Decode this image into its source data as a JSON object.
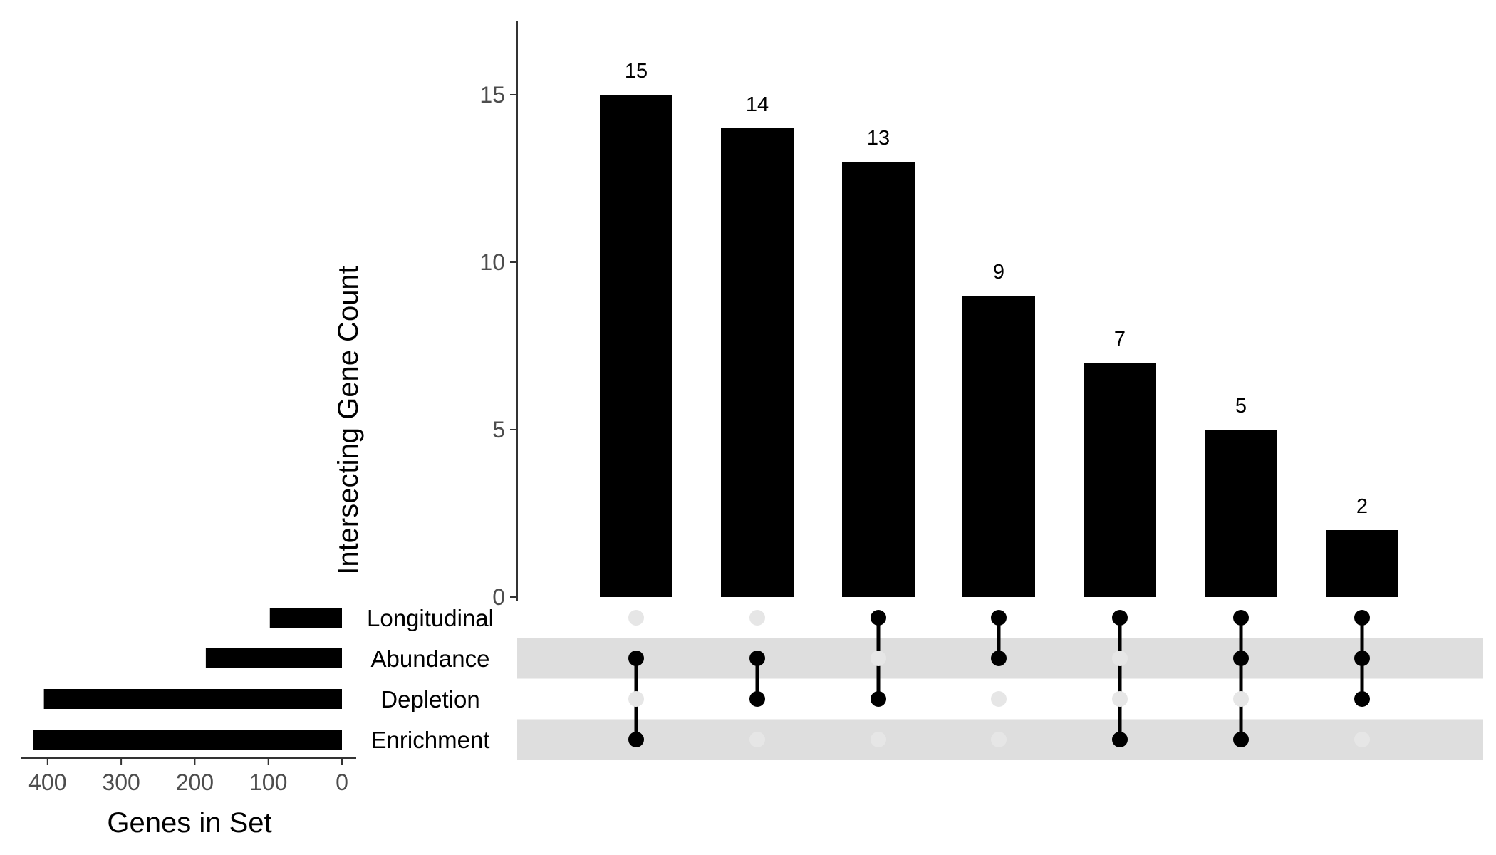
{
  "chart_data": [
    {
      "type": "bar",
      "name": "intersection-size",
      "ylabel": "Intersecting Gene Count",
      "ylim": [
        0,
        17.2
      ],
      "yticks": [
        0,
        5,
        10,
        15
      ],
      "values": [
        15,
        14,
        13,
        9,
        7,
        5,
        2
      ],
      "value_labels": [
        "15",
        "14",
        "13",
        "9",
        "7",
        "5",
        "2"
      ]
    },
    {
      "type": "bar",
      "name": "set-size",
      "orientation": "horizontal-reversed",
      "xlabel": "Genes in Set",
      "xlim": [
        430,
        0
      ],
      "xticks": [
        400,
        300,
        200,
        100,
        0
      ],
      "sets": [
        "Longitudinal",
        "Abundance",
        "Depletion",
        "Enrichment"
      ],
      "values": [
        98,
        185,
        405,
        420
      ]
    },
    {
      "type": "matrix",
      "name": "intersection-matrix",
      "sets": [
        "Longitudinal",
        "Abundance",
        "Depletion",
        "Enrichment"
      ],
      "membership": [
        [
          "Abundance",
          "Enrichment"
        ],
        [
          "Abundance",
          "Depletion"
        ],
        [
          "Longitudinal",
          "Depletion"
        ],
        [
          "Longitudinal",
          "Abundance"
        ],
        [
          "Longitudinal",
          "Enrichment"
        ],
        [
          "Longitudinal",
          "Abundance",
          "Enrichment"
        ],
        [
          "Longitudinal",
          "Abundance",
          "Depletion"
        ]
      ]
    }
  ],
  "colors": {
    "bar": "#000000",
    "active_dot": "#000000",
    "inactive_dot": "#e6e6e6",
    "stripe": "#dedede",
    "axis": "#333333",
    "tick_text": "#4d4d4d"
  }
}
